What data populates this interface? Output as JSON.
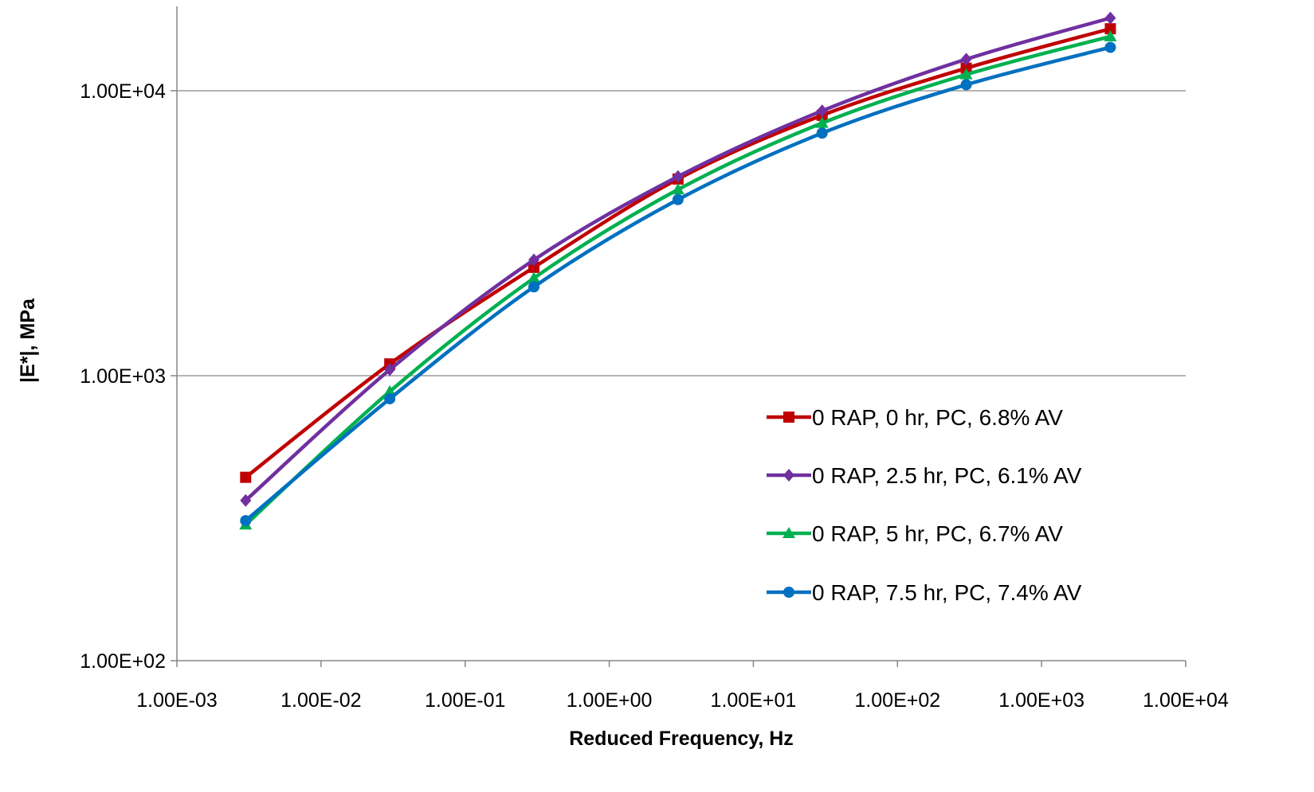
{
  "chart_data": {
    "type": "line",
    "title": "",
    "xlabel": "Reduced Frequency, Hz",
    "ylabel": "|E*|, MPa",
    "x_scale": "log",
    "y_scale": "log",
    "xlim": [
      0.001,
      10000
    ],
    "ylim": [
      100,
      20000
    ],
    "x_tick_labels": [
      "1.00E-03",
      "1.00E-02",
      "1.00E-01",
      "1.00E+00",
      "1.00E+01",
      "1.00E+02",
      "1.00E+03",
      "1.00E+04"
    ],
    "x_tick_values": [
      0.001,
      0.01,
      0.1,
      1,
      10,
      100,
      1000,
      10000
    ],
    "y_tick_labels": [
      "1.00E+02",
      "1.00E+03",
      "1.00E+04"
    ],
    "y_tick_values": [
      100,
      1000,
      10000
    ],
    "grid": "horizontal major gridlines",
    "legend_position": "right-center",
    "x": [
      0.003,
      0.03,
      0.3,
      3,
      30,
      300,
      3000
    ],
    "series": [
      {
        "name": "0 RAP, 0 hr, PC, 6.8% AV",
        "color": "#c00000",
        "marker": "square",
        "values": [
          440,
          1100,
          2400,
          4900,
          8200,
          12000,
          16500
        ]
      },
      {
        "name": "0 RAP, 2.5 hr, PC, 6.1% AV",
        "color": "#7030a0",
        "marker": "diamond",
        "values": [
          365,
          1050,
          2550,
          5000,
          8500,
          12900,
          18000
        ]
      },
      {
        "name": "0 RAP, 5 hr, PC, 6.7% AV",
        "color": "#00b050",
        "marker": "triangle",
        "values": [
          300,
          880,
          2200,
          4500,
          7700,
          11400,
          15500
        ]
      },
      {
        "name": "0 RAP, 7.5 hr, PC, 7.4% AV",
        "color": "#0070c0",
        "marker": "circle",
        "values": [
          310,
          830,
          2050,
          4150,
          7100,
          10500,
          14200
        ]
      }
    ]
  }
}
